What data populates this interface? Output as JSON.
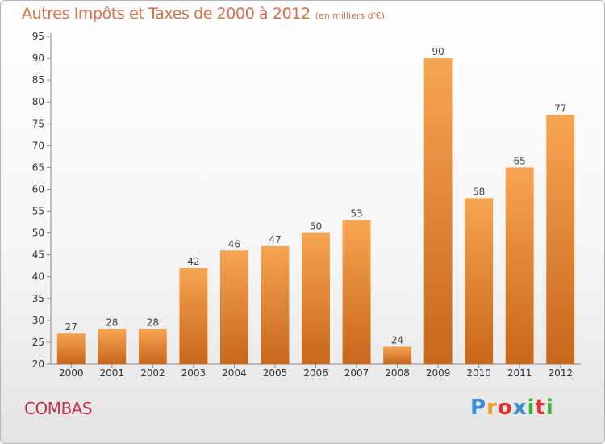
{
  "chart_data": {
    "type": "bar",
    "title": "Autres Impôts et Taxes de 2000 à 2012",
    "subtitle": "(en milliers d'€)",
    "categories": [
      "2000",
      "2001",
      "2002",
      "2003",
      "2004",
      "2005",
      "2006",
      "2007",
      "2008",
      "2009",
      "2010",
      "2011",
      "2012"
    ],
    "values": [
      27,
      28,
      28,
      42,
      46,
      47,
      50,
      53,
      24,
      90,
      58,
      65,
      77
    ],
    "ylim": [
      20,
      95
    ],
    "yticks": [
      20,
      25,
      30,
      35,
      40,
      45,
      50,
      55,
      60,
      65,
      70,
      75,
      80,
      85,
      90,
      95
    ],
    "xlabel": "",
    "ylabel": "",
    "grid": false,
    "legend": "none",
    "colors": {
      "bar_top": "#f7a552",
      "bar_bottom": "#c8661a",
      "title": "#d4704a"
    }
  },
  "commune": "COMBAS",
  "logo": {
    "letters": [
      "P",
      "r",
      "o",
      "x",
      "i",
      "t",
      "i"
    ],
    "colors": [
      "#3a8fd6",
      "#f0a020",
      "#e03030",
      "#3a8fd6",
      "#40b040",
      "#e03030",
      "#40b040"
    ]
  }
}
